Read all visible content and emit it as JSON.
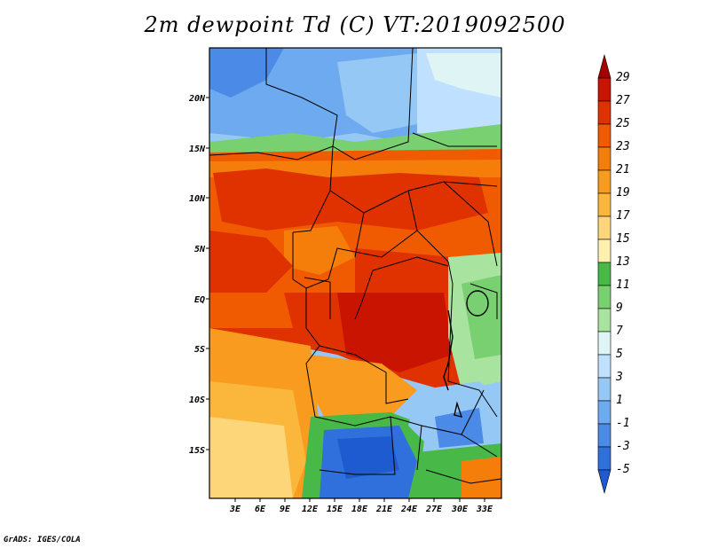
{
  "title": "2m dewpoint Td (C) VT:2019092500",
  "credit": "GrADS: IGES/COLA",
  "map": {
    "lon_ticks": [
      "3E",
      "6E",
      "9E",
      "12E",
      "15E",
      "18E",
      "21E",
      "24E",
      "27E",
      "30E",
      "33E"
    ],
    "lat_ticks": [
      "20N",
      "15N",
      "10N",
      "5N",
      "EQ",
      "5S",
      "10S",
      "15S"
    ],
    "lon_range": [
      0,
      35
    ],
    "lat_range": [
      -20,
      25
    ]
  },
  "colorbar": {
    "labels": [
      "29",
      "27",
      "25",
      "23",
      "21",
      "19",
      "17",
      "15",
      "13",
      "11",
      "9",
      "7",
      "5",
      "3",
      "1",
      "-1",
      "-3",
      "-5"
    ],
    "colors": [
      "#a50000",
      "#c81400",
      "#e03200",
      "#f05a00",
      "#f57d0a",
      "#f99b1e",
      "#fbb63c",
      "#fdd67a",
      "#fff0b0",
      "#48b848",
      "#78d070",
      "#a8e4a0",
      "#dff5f5",
      "#c0e0ff",
      "#96c8f5",
      "#6eaaf0",
      "#4b8ae6",
      "#3070dc",
      "#1e5ad0"
    ]
  }
}
